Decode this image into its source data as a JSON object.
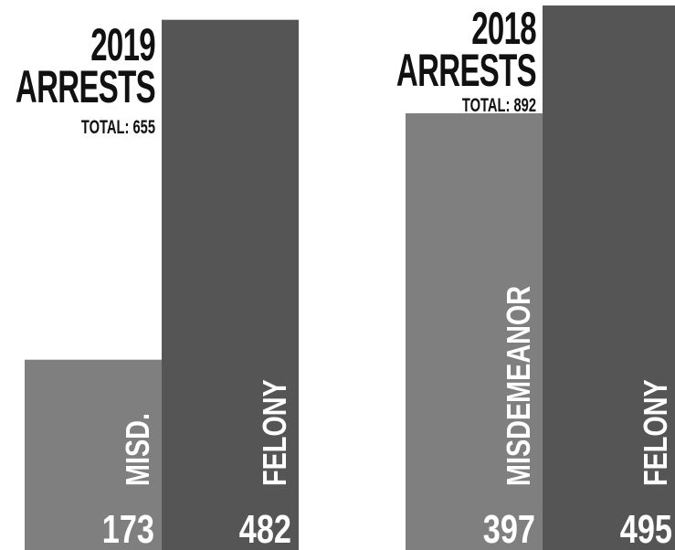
{
  "chart_data": [
    {
      "type": "bar",
      "title": "2019 ARRESTS",
      "subtitle": "TOTAL: 655",
      "categories": [
        "MISD.",
        "FELONY"
      ],
      "values": [
        173,
        482
      ],
      "colors": [
        "#7f7f7f",
        "#555555"
      ],
      "ylim": [
        0,
        500
      ]
    },
    {
      "type": "bar",
      "title": "2018 ARRESTS",
      "subtitle": "TOTAL: 892",
      "categories": [
        "MISDEMEANOR",
        "FELONY"
      ],
      "values": [
        397,
        495
      ],
      "colors": [
        "#7f7f7f",
        "#555555"
      ],
      "ylim": [
        0,
        500
      ]
    }
  ]
}
